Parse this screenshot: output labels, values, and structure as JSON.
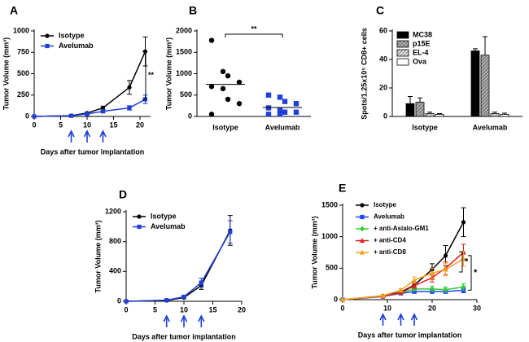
{
  "chart_data": [
    {
      "type": "line",
      "label": "A",
      "xlabel": "Days after tumor implantation",
      "ylabel": "Tumor Volume (mm³)",
      "xlim": [
        0,
        22
      ],
      "xticks": [
        0,
        5,
        10,
        15,
        20
      ],
      "ylim": [
        0,
        1000
      ],
      "yticks": [
        0,
        250,
        500,
        750,
        1000
      ],
      "x": [
        0,
        7,
        10,
        13,
        18,
        21
      ],
      "arrows_x": [
        7,
        10,
        13
      ],
      "arrow_color": "#1f3fd6",
      "legend": "upper left",
      "annotations": [
        "**"
      ],
      "series": [
        {
          "name": "Isotype",
          "color": "#000000",
          "marker": "circle",
          "values": [
            0,
            10,
            40,
            100,
            340,
            760
          ],
          "errors": [
            0,
            5,
            10,
            20,
            80,
            170
          ]
        },
        {
          "name": "Avelumab",
          "color": "#1f3fd6",
          "marker": "square",
          "values": [
            0,
            8,
            30,
            60,
            100,
            200
          ],
          "errors": [
            0,
            4,
            8,
            15,
            25,
            50
          ]
        }
      ]
    },
    {
      "type": "strip",
      "label": "B",
      "ylabel": "Tumor Volume (mm³)",
      "ylim": [
        0,
        2000
      ],
      "yticks": [
        0,
        500,
        1000,
        1500,
        2000
      ],
      "categories": [
        "Isotype",
        "Avelumab"
      ],
      "values": [
        [
          1780,
          1050,
          950,
          800,
          700,
          650,
          400,
          300,
          50
        ],
        [
          500,
          450,
          350,
          300,
          200,
          150,
          100,
          100,
          50,
          50
        ]
      ],
      "means": [
        750,
        210
      ],
      "colors": [
        "#000000",
        "#1f3fd6"
      ],
      "markers": [
        "circle",
        "square"
      ],
      "annotations": [
        "**"
      ]
    },
    {
      "type": "bar",
      "label": "C",
      "ylabel": "Spots/1.25x10⁵ CD8+ cells",
      "ylim": [
        0,
        60
      ],
      "yticks": [
        0,
        20,
        40,
        60
      ],
      "categories": [
        "Isotype",
        "Avelumab"
      ],
      "legend": "upper left",
      "series": [
        {
          "name": "MC38",
          "color": "#000000",
          "pattern": "solid",
          "values": [
            9,
            46
          ],
          "errors": [
            5,
            1.5
          ]
        },
        {
          "name": "p15E",
          "color": "#aaaaaa",
          "pattern": "hatch",
          "values": [
            10,
            43
          ],
          "errors": [
            3,
            13
          ]
        },
        {
          "name": "EL-4",
          "color": "#dddddd",
          "pattern": "hatch",
          "values": [
            2,
            2
          ],
          "errors": [
            1,
            1
          ]
        },
        {
          "name": "Ova",
          "color": "#ffffff",
          "pattern": "solid",
          "values": [
            1.5,
            1.5
          ],
          "errors": [
            0.5,
            0.8
          ]
        }
      ]
    },
    {
      "type": "line",
      "label": "D",
      "xlabel": "Days after tumor implantation",
      "ylabel": "Tumor Volume (mm³)",
      "xlim": [
        0,
        20
      ],
      "xticks": [
        0,
        5,
        10,
        15,
        20
      ],
      "ylim": [
        0,
        1200
      ],
      "yticks": [
        0,
        400,
        800,
        1200
      ],
      "x": [
        0,
        7,
        10,
        13,
        18
      ],
      "arrows_x": [
        7,
        10,
        13
      ],
      "arrow_color": "#1f3fd6",
      "legend": "upper left",
      "annotations": [],
      "series": [
        {
          "name": "Isotype",
          "color": "#000000",
          "marker": "circle",
          "values": [
            0,
            10,
            50,
            210,
            950
          ],
          "errors": [
            0,
            5,
            15,
            50,
            200
          ]
        },
        {
          "name": "Avelumab",
          "color": "#1f3fd6",
          "marker": "square",
          "values": [
            0,
            15,
            60,
            250,
            930
          ],
          "errors": [
            0,
            5,
            20,
            60,
            150
          ]
        }
      ]
    },
    {
      "type": "line",
      "label": "E",
      "xlabel": "Days after tumor implantation",
      "ylabel": "Tumor Volume (mm³)",
      "xlim": [
        0,
        30
      ],
      "xticks": [
        0,
        10,
        20,
        30
      ],
      "ylim": [
        0,
        1500
      ],
      "yticks": [
        0,
        500,
        1000,
        1500
      ],
      "x": [
        0,
        9,
        13,
        16,
        20,
        23,
        27
      ],
      "arrows_x": [
        9,
        13,
        16
      ],
      "arrow_color": "#1f3fd6",
      "legend": "upper left",
      "annotations": [
        "*",
        "*"
      ],
      "series": [
        {
          "name": "Isotype",
          "color": "#000000",
          "marker": "circle",
          "values": [
            0,
            60,
            120,
            230,
            480,
            700,
            1230
          ],
          "errors": [
            0,
            10,
            20,
            50,
            90,
            160,
            230
          ]
        },
        {
          "name": "Avelumab",
          "color": "#2040ff",
          "marker": "square",
          "values": [
            0,
            50,
            100,
            130,
            130,
            130,
            150
          ],
          "errors": [
            0,
            10,
            15,
            30,
            30,
            30,
            40
          ]
        },
        {
          "name": "+ anti-Asialo-GM1",
          "color": "#33cc33",
          "marker": "diamond",
          "values": [
            0,
            55,
            110,
            170,
            170,
            160,
            200
          ],
          "errors": [
            0,
            10,
            15,
            30,
            40,
            40,
            50
          ]
        },
        {
          "name": "+ anti-CD4",
          "color": "#e02020",
          "marker": "triangle",
          "values": [
            0,
            55,
            110,
            220,
            350,
            500,
            750
          ],
          "errors": [
            0,
            10,
            15,
            40,
            70,
            100,
            130
          ]
        },
        {
          "name": "+ anti-CD8",
          "color": "#f5a020",
          "marker": "triangle",
          "values": [
            0,
            65,
            150,
            310,
            420,
            480,
            650
          ],
          "errors": [
            0,
            10,
            25,
            50,
            80,
            100,
            120
          ]
        }
      ]
    }
  ]
}
